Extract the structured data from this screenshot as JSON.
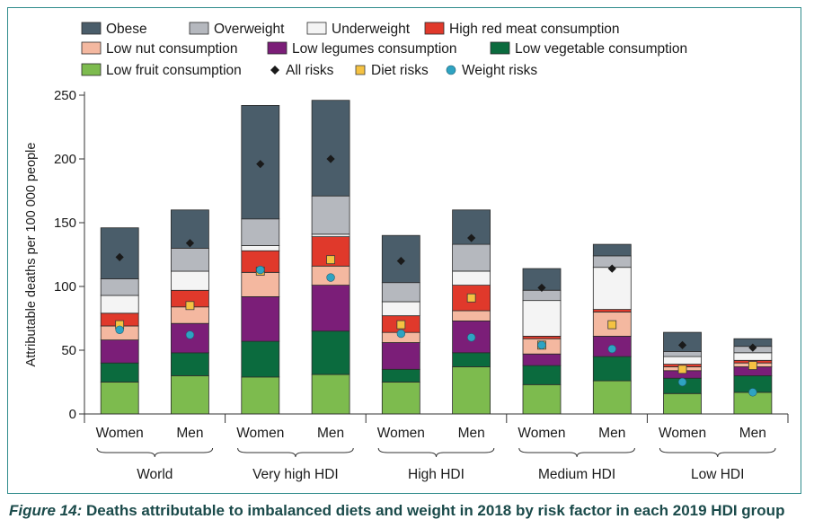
{
  "caption": {
    "figure_label": "Figure 14:",
    "text": " Deaths attributable to imbalanced diets and weight in 2018 by risk factor in each 2019 HDI group"
  },
  "chart_data": {
    "type": "bar",
    "stacked": true,
    "ylabel": "Attributable deaths per 100 000 people",
    "ylim": [
      0,
      250
    ],
    "yticks": [
      0,
      50,
      100,
      150,
      200,
      250
    ],
    "grid": false,
    "legend_position": "top",
    "groups": [
      "World",
      "Very high HDI",
      "High HDI",
      "Medium HDI",
      "Low HDI"
    ],
    "categories": [
      "Women",
      "Men",
      "Women",
      "Men",
      "Women",
      "Men",
      "Women",
      "Men",
      "Women",
      "Men"
    ],
    "series": [
      {
        "name": "Low fruit consumption",
        "color": "#7dbb4e",
        "values": [
          25,
          30,
          29,
          31,
          25,
          37,
          23,
          26,
          16,
          17
        ]
      },
      {
        "name": "Low vegetable consumption",
        "color": "#0b6b3e",
        "values": [
          15,
          18,
          28,
          34,
          10,
          11,
          15,
          19,
          12,
          13
        ]
      },
      {
        "name": "Low legumes consumption",
        "color": "#7b1e78",
        "values": [
          18,
          23,
          35,
          36,
          21,
          25,
          9,
          16,
          6,
          7
        ]
      },
      {
        "name": "Low nut consumption",
        "color": "#f4b8a0",
        "values": [
          11,
          13,
          19,
          15,
          8,
          8,
          12,
          19,
          3,
          3
        ]
      },
      {
        "name": "High red meat consumption",
        "color": "#e0392b",
        "values": [
          10,
          13,
          17,
          23,
          13,
          20,
          2,
          2,
          2,
          2
        ]
      },
      {
        "name": "Underweight",
        "color": "#f4f4f4",
        "values": [
          14,
          15,
          4,
          2,
          11,
          11,
          28,
          33,
          6,
          6
        ]
      },
      {
        "name": "Overweight",
        "color": "#b5b8be",
        "values": [
          13,
          18,
          21,
          30,
          15,
          21,
          8,
          9,
          4,
          5
        ]
      },
      {
        "name": "Obese",
        "color": "#4a5d6a",
        "values": [
          40,
          30,
          89,
          75,
          37,
          27,
          17,
          9,
          15,
          6
        ]
      }
    ],
    "markers": [
      {
        "name": "All risks",
        "shape": "diamond",
        "color": "#1a1a1a",
        "values": [
          123,
          134,
          196,
          200,
          120,
          138,
          99,
          114,
          54,
          52
        ]
      },
      {
        "name": "Diet risks",
        "shape": "square",
        "color": "#f5c242",
        "values": [
          70,
          85,
          112,
          121,
          70,
          91,
          54,
          70,
          35,
          38
        ]
      },
      {
        "name": "Weight risks",
        "shape": "circle",
        "color": "#2ea3c2",
        "values": [
          66,
          62,
          113,
          107,
          63,
          60,
          54,
          51,
          25,
          17
        ]
      }
    ],
    "legend_order": [
      "Obese",
      "Overweight",
      "Underweight",
      "High red meat consumption",
      "Low nut consumption",
      "Low legumes consumption",
      "Low vegetable consumption",
      "Low fruit consumption",
      "All risks",
      "Diet risks",
      "Weight risks"
    ]
  }
}
